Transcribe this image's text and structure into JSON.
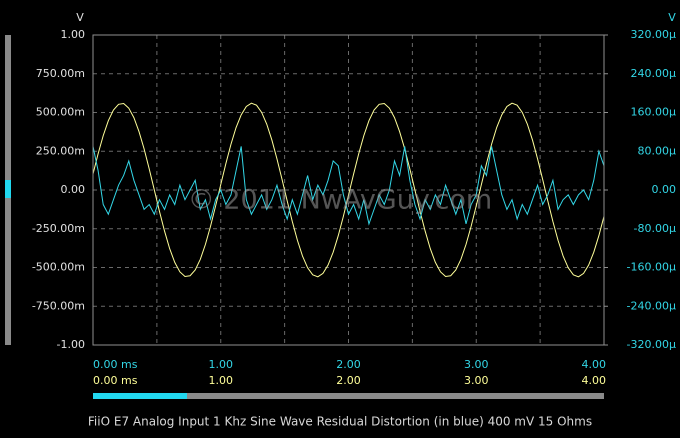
{
  "chart_data": {
    "type": "line",
    "title": "FiiO E7 Analog Input 1 Khz Sine Wave Residual Distortion (in blue) 400 mV 15 Ohms",
    "watermark": "© 2011 NwAvGuy.com",
    "y_label": "V",
    "y2_label": "V",
    "xlim": [
      0,
      4
    ],
    "xticks": [
      {
        "value": 0,
        "label": "0.00 ms"
      },
      {
        "value": 1,
        "label": "1.00"
      },
      {
        "value": 2,
        "label": "2.00"
      },
      {
        "value": 3,
        "label": "3.00"
      },
      {
        "value": 4,
        "label": "4.00"
      }
    ],
    "x2ticks": [
      {
        "value": 0,
        "label": "0.00 ms"
      },
      {
        "value": 1,
        "label": "1.00"
      },
      {
        "value": 2,
        "label": "2.00"
      },
      {
        "value": 3,
        "label": "3.00"
      },
      {
        "value": 4,
        "label": "4.00"
      }
    ],
    "x_minor_ticks": [
      0.5,
      1.5,
      2.5,
      3.5
    ],
    "ylim": [
      -1,
      1
    ],
    "yticks": [
      {
        "value": 1,
        "label": "1.00"
      },
      {
        "value": 0.75,
        "label": "750.00m"
      },
      {
        "value": 0.5,
        "label": "500.00m"
      },
      {
        "value": 0.25,
        "label": "250.00m"
      },
      {
        "value": 0,
        "label": "0.00"
      },
      {
        "value": -0.25,
        "label": "-250.00m"
      },
      {
        "value": -0.5,
        "label": "-500.00m"
      },
      {
        "value": -0.75,
        "label": "-750.00m"
      },
      {
        "value": -1,
        "label": "-1.00"
      }
    ],
    "y2lim": [
      -0.00032,
      0.00032
    ],
    "y2ticks": [
      {
        "value": 0.00032,
        "label": "320.00µ"
      },
      {
        "value": 0.00024,
        "label": "240.00µ"
      },
      {
        "value": 0.00016,
        "label": "160.00µ"
      },
      {
        "value": 8e-05,
        "label": "80.00µ"
      },
      {
        "value": 0,
        "label": "0.00"
      },
      {
        "value": -8e-05,
        "label": "-80.00µ"
      },
      {
        "value": -0.00016,
        "label": "-160.00µ"
      },
      {
        "value": -0.00024,
        "label": "-240.00µ"
      },
      {
        "value": -0.00032,
        "label": "-320.00µ"
      }
    ],
    "grid": true,
    "x": [
      0,
      0.04,
      0.08,
      0.12,
      0.16,
      0.2,
      0.24,
      0.28,
      0.32,
      0.36,
      0.4,
      0.44,
      0.48,
      0.52,
      0.56,
      0.6,
      0.64,
      0.68,
      0.72,
      0.76,
      0.8,
      0.84,
      0.88,
      0.92,
      0.96,
      1,
      1.04,
      1.08,
      1.12,
      1.16,
      1.2,
      1.24,
      1.28,
      1.32,
      1.36,
      1.4,
      1.44,
      1.48,
      1.52,
      1.56,
      1.6,
      1.64,
      1.68,
      1.72,
      1.76,
      1.8,
      1.84,
      1.88,
      1.92,
      1.96,
      2,
      2.04,
      2.08,
      2.12,
      2.16,
      2.2,
      2.24,
      2.28,
      2.32,
      2.36,
      2.4,
      2.44,
      2.48,
      2.52,
      2.56,
      2.6,
      2.64,
      2.68,
      2.72,
      2.76,
      2.8,
      2.84,
      2.88,
      2.92,
      2.96,
      3,
      3.04,
      3.08,
      3.12,
      3.16,
      3.2,
      3.24,
      3.28,
      3.32,
      3.36,
      3.4,
      3.44,
      3.48,
      3.52,
      3.56,
      3.6,
      3.64,
      3.68,
      3.72,
      3.76,
      3.8,
      3.84,
      3.88,
      3.92,
      3.96,
      4
    ],
    "series": [
      {
        "color": "#ffff99",
        "axis": "y",
        "values": [
          0.103,
          0.234,
          0.351,
          0.447,
          0.516,
          0.553,
          0.558,
          0.528,
          0.467,
          0.377,
          0.265,
          0.136,
          0,
          -0.137,
          -0.265,
          -0.378,
          -0.467,
          -0.528,
          -0.558,
          -0.553,
          -0.516,
          -0.447,
          -0.351,
          -0.234,
          -0.102,
          0.035,
          0.17,
          0.295,
          0.403,
          0.485,
          0.539,
          0.56,
          0.547,
          0.501,
          0.425,
          0.323,
          0.201,
          0.068,
          -0.07,
          -0.203,
          -0.324,
          -0.426,
          -0.502,
          -0.547,
          -0.56,
          -0.538,
          -0.484,
          -0.401,
          -0.294,
          -0.169,
          -0.033,
          0.103,
          0.234,
          0.351,
          0.447,
          0.516,
          0.553,
          0.558,
          0.528,
          0.467,
          0.377,
          0.265,
          0.136,
          0,
          -0.137,
          -0.265,
          -0.378,
          -0.467,
          -0.528,
          -0.558,
          -0.553,
          -0.516,
          -0.447,
          -0.351,
          -0.234,
          -0.102,
          0.035,
          0.17,
          0.295,
          0.403,
          0.485,
          0.539,
          0.56,
          0.547,
          0.501,
          0.425,
          0.323,
          0.201,
          0.068,
          -0.07,
          -0.203,
          -0.324,
          -0.426,
          -0.502,
          -0.547,
          -0.56,
          -0.538,
          -0.484,
          -0.401,
          -0.294,
          -0.169
        ]
      },
      {
        "color": "#33d6e6",
        "axis": "y2",
        "values": [
          9e-05,
          4e-05,
          -3e-05,
          -5e-05,
          -2e-05,
          1e-05,
          3e-05,
          6e-05,
          2e-05,
          -1e-05,
          -4e-05,
          -3e-05,
          -5e-05,
          -2e-05,
          -4e-05,
          -1e-05,
          -3e-05,
          1e-05,
          -2e-05,
          0,
          2e-05,
          -4e-05,
          -2e-05,
          -6e-05,
          -2e-05,
          0,
          -3e-05,
          -1e-05,
          4e-05,
          9e-05,
          -2e-05,
          -5e-05,
          -3e-05,
          -1e-05,
          -4e-05,
          -2e-05,
          1e-05,
          -3e-05,
          -6e-05,
          -2e-05,
          -5e-05,
          -1e-05,
          3e-05,
          -2e-05,
          1e-05,
          -1e-05,
          2e-05,
          6e-05,
          5e-05,
          -1e-05,
          -5e-05,
          -3e-05,
          -6e-05,
          -2e-05,
          -7e-05,
          -4e-05,
          -1e-05,
          -3e-05,
          0,
          6e-05,
          3e-05,
          9e-05,
          2e-05,
          -3e-05,
          -6e-05,
          -2e-05,
          -4e-05,
          -1e-05,
          -3e-05,
          1e-05,
          -2e-05,
          -5e-05,
          -2e-05,
          -7e-05,
          -3e-05,
          -1e-05,
          5e-05,
          3e-05,
          9e-05,
          4e-05,
          -1e-05,
          -4e-05,
          -2e-05,
          -6e-05,
          -3e-05,
          -5e-05,
          -2e-05,
          1e-05,
          -3e-05,
          -1e-05,
          2e-05,
          -4e-05,
          -2e-05,
          -1e-05,
          -3e-05,
          -1e-05,
          0,
          -2e-05,
          2e-05,
          8e-05,
          5e-05
        ]
      }
    ]
  }
}
